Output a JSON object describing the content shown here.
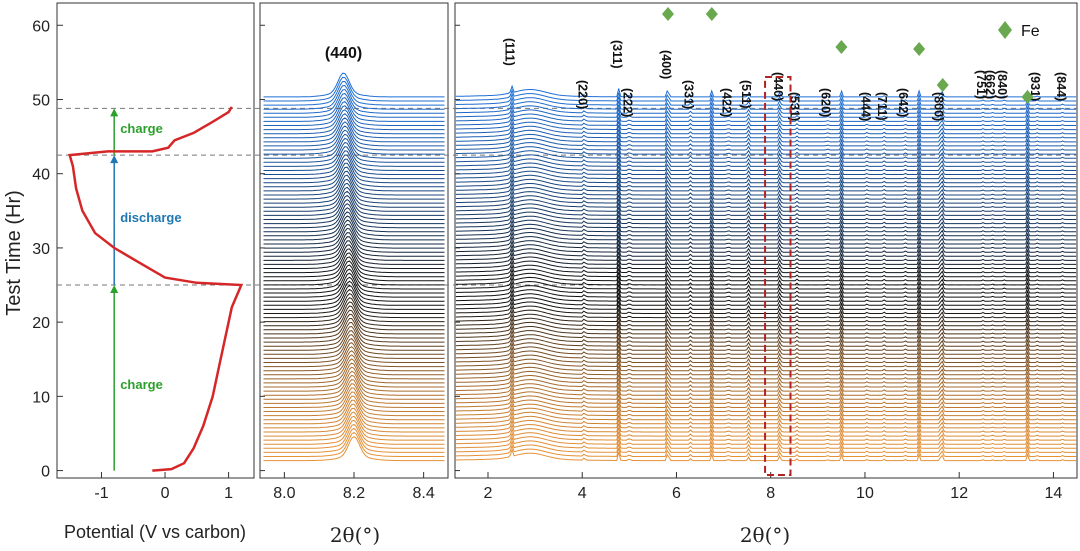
{
  "figure": {
    "y_axis_label": "Test Time (Hr)",
    "y_ticks": [
      0,
      10,
      20,
      30,
      40,
      50,
      60
    ],
    "y_range": [
      -1,
      63
    ]
  },
  "chart_data": [
    {
      "type": "line",
      "panel": "potential",
      "xlabel": "Potential (V vs carbon)",
      "ylabel": "Test Time (Hr)",
      "xlim": [
        -1.7,
        1.4
      ],
      "ylim": [
        -1,
        63
      ],
      "x_ticks": [
        -1,
        0,
        1
      ],
      "series": [
        {
          "color": "#d62728",
          "points": [
            [
              -0.2,
              0
            ],
            [
              0.1,
              0.2
            ],
            [
              0.3,
              1
            ],
            [
              0.45,
              3
            ],
            [
              0.6,
              6
            ],
            [
              0.75,
              10
            ],
            [
              0.85,
              14
            ],
            [
              0.95,
              18
            ],
            [
              1.05,
              22
            ],
            [
              1.15,
              24
            ],
            [
              1.2,
              25
            ],
            [
              0.5,
              25.3
            ],
            [
              0.0,
              26
            ],
            [
              -0.4,
              28
            ],
            [
              -0.8,
              30
            ],
            [
              -1.1,
              32
            ],
            [
              -1.3,
              35
            ],
            [
              -1.4,
              38
            ],
            [
              -1.45,
              41
            ],
            [
              -1.5,
              42.5
            ],
            [
              -0.9,
              43
            ],
            [
              -0.2,
              43
            ],
            [
              0.05,
              43.5
            ],
            [
              0.15,
              44.5
            ],
            [
              0.45,
              45.5
            ],
            [
              0.75,
              47
            ],
            [
              1.0,
              48.3
            ],
            [
              1.05,
              49
            ]
          ]
        }
      ],
      "markers": {
        "dashed_lines_y": [
          25,
          42.5,
          48.8
        ],
        "arrow_x": -0.8,
        "segments": [
          {
            "label": "charge",
            "y_from": 0,
            "y_to": 25,
            "color": "#2ca02c",
            "label_y": 11
          },
          {
            "label": "discharge",
            "y_from": 25,
            "y_to": 42.5,
            "color": "#1f77b4",
            "label_y": 33.5
          },
          {
            "label": "charge",
            "y_from": 42.5,
            "y_to": 48.8,
            "color": "#2ca02c",
            "label_y": 45.5
          }
        ]
      }
    },
    {
      "type": "line",
      "panel": "xrd-zoom-440",
      "xlabel": "2θ(°)",
      "title": "(440)",
      "xlim": [
        7.93,
        8.47
      ],
      "x_ticks": [
        8.0,
        8.2,
        8.4
      ],
      "num_patterns": 90,
      "time_range_hr": [
        0,
        49
      ],
      "peak_center_start": 8.2,
      "peak_center_end": 8.17,
      "colors": {
        "start": "#e69138",
        "middle": "#111111",
        "end": "#1f6fd6"
      }
    },
    {
      "type": "line",
      "panel": "xrd-full",
      "xlabel": "2θ(°)",
      "xlim": [
        1.3,
        14.5
      ],
      "x_ticks": [
        2,
        4,
        6,
        8,
        10,
        12,
        14
      ],
      "num_patterns": 90,
      "peaks": [
        {
          "label": "(111)",
          "x": 2.5,
          "height": 9.5
        },
        {
          "label": "(220)",
          "x": 4.05,
          "height": 3.5
        },
        {
          "label": "(311)",
          "x": 4.78,
          "height": 9.0
        },
        {
          "label": "(222)",
          "x": 5.0,
          "height": 3.0
        },
        {
          "label": "(400)",
          "x": 5.82,
          "height": 12.5,
          "fe": true
        },
        {
          "label": "(331)",
          "x": 6.3,
          "height": 2.0
        },
        {
          "label": "(422)",
          "x": 7.1,
          "height": 2.0
        },
        {
          "label": "(511)",
          "x": 7.52,
          "height": 4.5
        },
        {
          "label": "(440)",
          "x": 8.2,
          "height": 6.5
        },
        {
          "label": "(531)",
          "x": 8.55,
          "height": 2.0
        },
        {
          "label": "(620)",
          "x": 9.2,
          "height": 1.5
        },
        {
          "label": "(444)",
          "x": 10.05,
          "height": 1.5
        },
        {
          "label": "(711)",
          "x": 10.4,
          "height": 1.5
        },
        {
          "label": "(642)",
          "x": 10.85,
          "height": 1.5
        },
        {
          "label": "(800)",
          "x": 11.6,
          "height": 3.0
        },
        {
          "label": "(751)",
          "x": 12.5,
          "height": 1.0
        },
        {
          "label": "(662)",
          "x": 12.7,
          "height": 1.0
        },
        {
          "label": "(840)",
          "x": 12.95,
          "height": 1.0
        },
        {
          "label": "(931)",
          "x": 13.65,
          "height": 1.0
        },
        {
          "label": "(844)",
          "x": 14.2,
          "height": 1.0
        }
      ],
      "fe_peaks": [
        6.75,
        9.5,
        11.15,
        11.65,
        13.45
      ],
      "legend": {
        "label": "Fe",
        "color": "#6aa84f",
        "position": "top-right"
      },
      "highlight_box": {
        "x_from": 7.88,
        "x_to": 8.42,
        "color": "#b22222"
      }
    }
  ]
}
